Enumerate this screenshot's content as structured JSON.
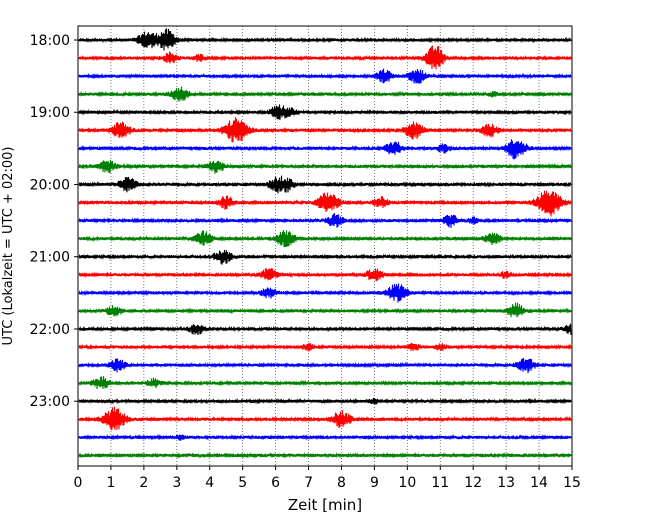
{
  "chart_data": {
    "type": "line",
    "title": "",
    "xlabel": "Zeit  [min]",
    "ylabel": "UTC (Lokalzeit = UTC + 02:00)",
    "xlim": [
      0,
      15
    ],
    "x_ticks": [
      "0",
      "1",
      "2",
      "3",
      "4",
      "5",
      "6",
      "7",
      "8",
      "9",
      "10",
      "11",
      "12",
      "13",
      "14",
      "15"
    ],
    "y_ticks": [
      "18:00",
      "19:00",
      "20:00",
      "21:00",
      "22:00",
      "23:00"
    ],
    "grid": "vertical dotted",
    "trace_interval_min": 15,
    "colors_cycle": [
      "#000000",
      "#ff0000",
      "#0000ff",
      "#008000"
    ],
    "series": [
      {
        "start": "18:00",
        "bursts": [
          [
            2.1,
            8
          ],
          [
            2.6,
            7
          ],
          [
            2.8,
            5
          ]
        ]
      },
      {
        "start": "18:15",
        "bursts": [
          [
            2.8,
            5
          ],
          [
            3.7,
            3
          ],
          [
            10.8,
            8
          ],
          [
            10.9,
            5
          ]
        ]
      },
      {
        "start": "18:30",
        "bursts": [
          [
            9.3,
            6
          ],
          [
            10.3,
            7
          ]
        ]
      },
      {
        "start": "18:45",
        "bursts": [
          [
            3.1,
            7
          ],
          [
            12.6,
            2
          ]
        ]
      },
      {
        "start": "19:00",
        "bursts": [
          [
            6.1,
            7
          ],
          [
            6.5,
            3
          ]
        ]
      },
      {
        "start": "19:15",
        "bursts": [
          [
            1.3,
            8
          ],
          [
            4.8,
            12
          ],
          [
            10.2,
            8
          ],
          [
            12.5,
            6
          ]
        ]
      },
      {
        "start": "19:30",
        "bursts": [
          [
            9.6,
            7
          ],
          [
            11.1,
            4
          ],
          [
            13.3,
            10
          ]
        ]
      },
      {
        "start": "19:45",
        "bursts": [
          [
            0.9,
            6
          ],
          [
            4.2,
            6
          ]
        ]
      },
      {
        "start": "20:00",
        "bursts": [
          [
            1.5,
            7
          ],
          [
            6.3,
            7
          ],
          [
            6.0,
            5
          ]
        ]
      },
      {
        "start": "20:15",
        "bursts": [
          [
            4.5,
            6
          ],
          [
            7.6,
            10
          ],
          [
            9.2,
            5
          ],
          [
            14.3,
            13
          ]
        ]
      },
      {
        "start": "20:30",
        "bursts": [
          [
            7.8,
            6
          ],
          [
            11.3,
            6
          ],
          [
            12.0,
            3
          ]
        ]
      },
      {
        "start": "20:45",
        "bursts": [
          [
            3.8,
            7
          ],
          [
            6.3,
            8
          ],
          [
            12.6,
            6
          ]
        ]
      },
      {
        "start": "21:00",
        "bursts": [
          [
            4.4,
            7
          ]
        ]
      },
      {
        "start": "21:15",
        "bursts": [
          [
            5.8,
            6
          ],
          [
            9.0,
            6
          ],
          [
            13.0,
            3
          ]
        ]
      },
      {
        "start": "21:30",
        "bursts": [
          [
            5.8,
            5
          ],
          [
            9.7,
            9
          ]
        ]
      },
      {
        "start": "21:45",
        "bursts": [
          [
            1.1,
            5
          ],
          [
            13.3,
            7
          ]
        ]
      },
      {
        "start": "22:00",
        "bursts": [
          [
            3.6,
            5
          ],
          [
            15.0,
            5
          ]
        ]
      },
      {
        "start": "22:15",
        "bursts": [
          [
            7.0,
            3
          ],
          [
            10.2,
            3
          ],
          [
            11.0,
            3
          ]
        ]
      },
      {
        "start": "22:30",
        "bursts": [
          [
            1.2,
            6
          ],
          [
            13.6,
            7
          ]
        ]
      },
      {
        "start": "22:45",
        "bursts": [
          [
            0.7,
            6
          ],
          [
            2.3,
            4
          ]
        ]
      },
      {
        "start": "23:00",
        "bursts": [
          [
            9.0,
            2
          ]
        ]
      },
      {
        "start": "23:15",
        "bursts": [
          [
            1.1,
            11
          ],
          [
            8.0,
            8
          ]
        ]
      },
      {
        "start": "23:30",
        "bursts": [
          [
            3.1,
            2
          ]
        ]
      },
      {
        "start": "23:45",
        "bursts": []
      }
    ]
  }
}
